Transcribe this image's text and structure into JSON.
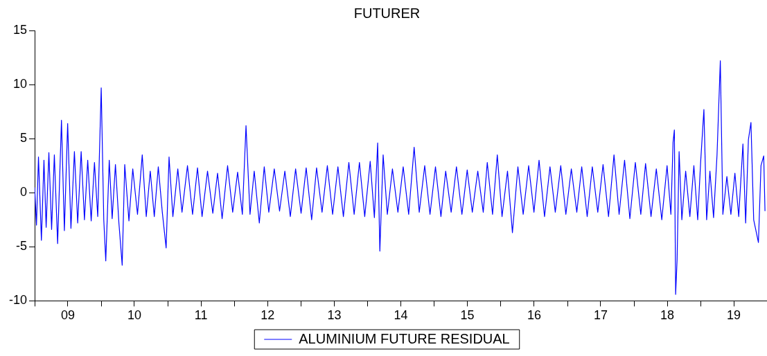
{
  "chart_data": {
    "type": "line",
    "title": "FUTURER",
    "x": [
      "2009-01-01",
      "2009-01-11",
      "2009-01-22",
      "2009-02-07",
      "2009-02-21",
      "2009-03-05",
      "2009-03-20",
      "2009-04-04",
      "2009-04-19",
      "2009-05-07",
      "2009-05-28",
      "2009-06-13",
      "2009-07-01",
      "2009-07-19",
      "2009-08-07",
      "2009-08-25",
      "2009-09-13",
      "2009-10-01",
      "2009-10-19",
      "2009-11-07",
      "2009-11-25",
      "2009-12-13",
      "2010-01-01",
      "2010-01-15",
      "2010-01-26",
      "2010-02-14",
      "2010-03-02",
      "2010-03-20",
      "2010-04-08",
      "2010-04-26",
      "2010-05-10",
      "2010-06-02",
      "2010-06-23",
      "2010-07-19",
      "2010-08-14",
      "2010-09-05",
      "2010-09-27",
      "2010-10-19",
      "2010-11-10",
      "2010-12-02",
      "2010-12-23",
      "2011-01-08",
      "2011-01-29",
      "2011-02-25",
      "2011-03-20",
      "2011-04-19",
      "2011-05-17",
      "2011-06-13",
      "2011-07-08",
      "2011-08-07",
      "2011-09-05",
      "2011-10-01",
      "2011-10-26",
      "2011-11-25",
      "2011-12-23",
      "2012-01-19",
      "2012-02-14",
      "2012-03-05",
      "2012-03-27",
      "2012-04-19",
      "2012-05-17",
      "2012-06-13",
      "2012-07-08",
      "2012-08-07",
      "2012-09-05",
      "2012-10-04",
      "2012-11-03",
      "2012-12-02",
      "2013-01-01",
      "2013-01-29",
      "2013-02-28",
      "2013-03-27",
      "2013-04-26",
      "2013-05-25",
      "2013-06-23",
      "2013-07-22",
      "2013-08-21",
      "2013-09-20",
      "2013-10-19",
      "2013-11-17",
      "2013-12-16",
      "2014-01-15",
      "2014-02-07",
      "2014-02-25",
      "2014-03-09",
      "2014-03-27",
      "2014-04-19",
      "2014-05-17",
      "2014-06-16",
      "2014-07-15",
      "2014-08-14",
      "2014-09-13",
      "2014-10-11",
      "2014-11-10",
      "2014-12-09",
      "2015-01-08",
      "2015-02-07",
      "2015-03-05",
      "2015-04-04",
      "2015-05-03",
      "2015-06-02",
      "2015-07-01",
      "2015-07-29",
      "2015-08-28",
      "2015-09-27",
      "2015-10-19",
      "2015-11-17",
      "2015-12-13",
      "2016-01-08",
      "2016-02-07",
      "2016-03-05",
      "2016-04-04",
      "2016-05-03",
      "2016-06-02",
      "2016-07-01",
      "2016-07-29",
      "2016-08-28",
      "2016-09-27",
      "2016-10-26",
      "2016-11-25",
      "2016-12-23",
      "2017-01-22",
      "2017-02-21",
      "2017-03-20",
      "2017-04-19",
      "2017-05-17",
      "2017-06-16",
      "2017-07-15",
      "2017-08-14",
      "2017-09-13",
      "2017-10-11",
      "2017-11-10",
      "2017-12-09",
      "2018-01-08",
      "2018-02-07",
      "2018-03-05",
      "2018-04-04",
      "2018-05-03",
      "2018-06-02",
      "2018-07-01",
      "2018-07-22",
      "2018-08-03",
      "2018-08-10",
      "2018-08-17",
      "2018-08-25",
      "2018-09-05",
      "2018-09-20",
      "2018-10-11",
      "2018-11-03",
      "2018-11-25",
      "2018-12-16",
      "2019-01-01",
      "2019-01-19",
      "2019-02-03",
      "2019-02-21",
      "2019-03-13",
      "2019-04-01",
      "2019-04-19",
      "2019-05-03",
      "2019-05-25",
      "2019-06-16",
      "2019-07-08",
      "2019-07-29",
      "2019-08-21",
      "2019-09-05",
      "2019-09-20",
      "2019-10-04",
      "2019-10-19",
      "2019-11-14",
      "2019-11-28",
      "2019-12-13",
      "2019-12-20"
    ],
    "series": [
      {
        "name": "ALUMINIUM FUTURE RESIDUAL",
        "color": "#0000ff",
        "values": [
          0.5,
          -3.0,
          3.3,
          -4.4,
          3.0,
          -3.2,
          3.7,
          -3.4,
          3.5,
          -4.7,
          6.7,
          -3.5,
          6.4,
          -3.3,
          3.8,
          -2.8,
          3.8,
          -2.5,
          3.0,
          -2.6,
          2.8,
          -2.2,
          9.7,
          -2.5,
          -6.3,
          3.0,
          -2.4,
          2.6,
          -2.8,
          -6.7,
          2.6,
          -2.6,
          2.2,
          -2.0,
          3.5,
          -2.2,
          2.0,
          -2.2,
          2.4,
          -1.8,
          -5.1,
          3.3,
          -2.2,
          2.2,
          -1.8,
          2.5,
          -2.0,
          2.3,
          -2.2,
          2.0,
          -1.9,
          1.8,
          -2.4,
          2.5,
          -1.8,
          1.9,
          -2.0,
          6.2,
          -2.0,
          2.0,
          -2.8,
          2.4,
          -1.8,
          2.2,
          -1.7,
          2.0,
          -2.2,
          2.2,
          -1.9,
          2.3,
          -2.5,
          2.3,
          -1.8,
          2.5,
          -2.0,
          2.4,
          -2.2,
          2.8,
          -2.0,
          2.8,
          -2.2,
          2.9,
          -2.3,
          4.6,
          -5.4,
          3.5,
          -2.0,
          2.2,
          -1.8,
          2.4,
          -2.0,
          4.2,
          -1.8,
          2.5,
          -2.0,
          2.4,
          -2.2,
          2.0,
          -1.8,
          2.4,
          -2.0,
          2.1,
          -1.8,
          2.0,
          -1.8,
          2.8,
          -2.0,
          3.5,
          -2.2,
          2.0,
          -3.7,
          2.4,
          -2.0,
          2.5,
          -1.8,
          3.0,
          -2.2,
          2.4,
          -1.8,
          2.5,
          -2.0,
          2.2,
          -1.8,
          2.4,
          -2.2,
          2.4,
          -1.8,
          2.6,
          -2.2,
          3.5,
          -2.0,
          3.0,
          -2.4,
          2.8,
          -2.0,
          2.7,
          -2.2,
          2.2,
          -2.5,
          2.5,
          -2.0,
          4.7,
          5.8,
          -9.4,
          -6.2,
          3.8,
          -2.5,
          2.0,
          -2.2,
          2.5,
          -2.5,
          2.8,
          7.7,
          -2.5,
          2.0,
          -2.3,
          3.5,
          12.2,
          -2.0,
          1.5,
          -2.0,
          1.8,
          -2.2,
          4.5,
          -2.8,
          4.9,
          6.5,
          -2.5,
          -4.6,
          2.5,
          3.4,
          -1.7
        ]
      }
    ],
    "xlim": [
      "2009-01-01",
      "2019-12-31"
    ],
    "xticks": [
      {
        "value": "2009-01-01",
        "label": null
      },
      {
        "value": "2009-07-02",
        "label": "09"
      },
      {
        "value": "2010-01-01",
        "label": null
      },
      {
        "value": "2010-07-02",
        "label": "10"
      },
      {
        "value": "2011-01-01",
        "label": null
      },
      {
        "value": "2011-07-02",
        "label": "11"
      },
      {
        "value": "2012-01-01",
        "label": null
      },
      {
        "value": "2012-07-02",
        "label": "12"
      },
      {
        "value": "2013-01-01",
        "label": null
      },
      {
        "value": "2013-07-02",
        "label": "13"
      },
      {
        "value": "2014-01-01",
        "label": null
      },
      {
        "value": "2014-07-02",
        "label": "14"
      },
      {
        "value": "2015-01-01",
        "label": null
      },
      {
        "value": "2015-07-02",
        "label": "15"
      },
      {
        "value": "2016-01-01",
        "label": null
      },
      {
        "value": "2016-07-02",
        "label": "16"
      },
      {
        "value": "2017-01-01",
        "label": null
      },
      {
        "value": "2017-07-02",
        "label": "17"
      },
      {
        "value": "2018-01-01",
        "label": null
      },
      {
        "value": "2018-07-02",
        "label": "18"
      },
      {
        "value": "2019-01-01",
        "label": null
      },
      {
        "value": "2019-07-02",
        "label": "19"
      }
    ],
    "ylim": [
      -10,
      15
    ],
    "yticks": [
      -10,
      -5,
      0,
      5,
      10,
      15
    ],
    "legend": "bottom",
    "marker": "none",
    "line_style": "solid"
  }
}
